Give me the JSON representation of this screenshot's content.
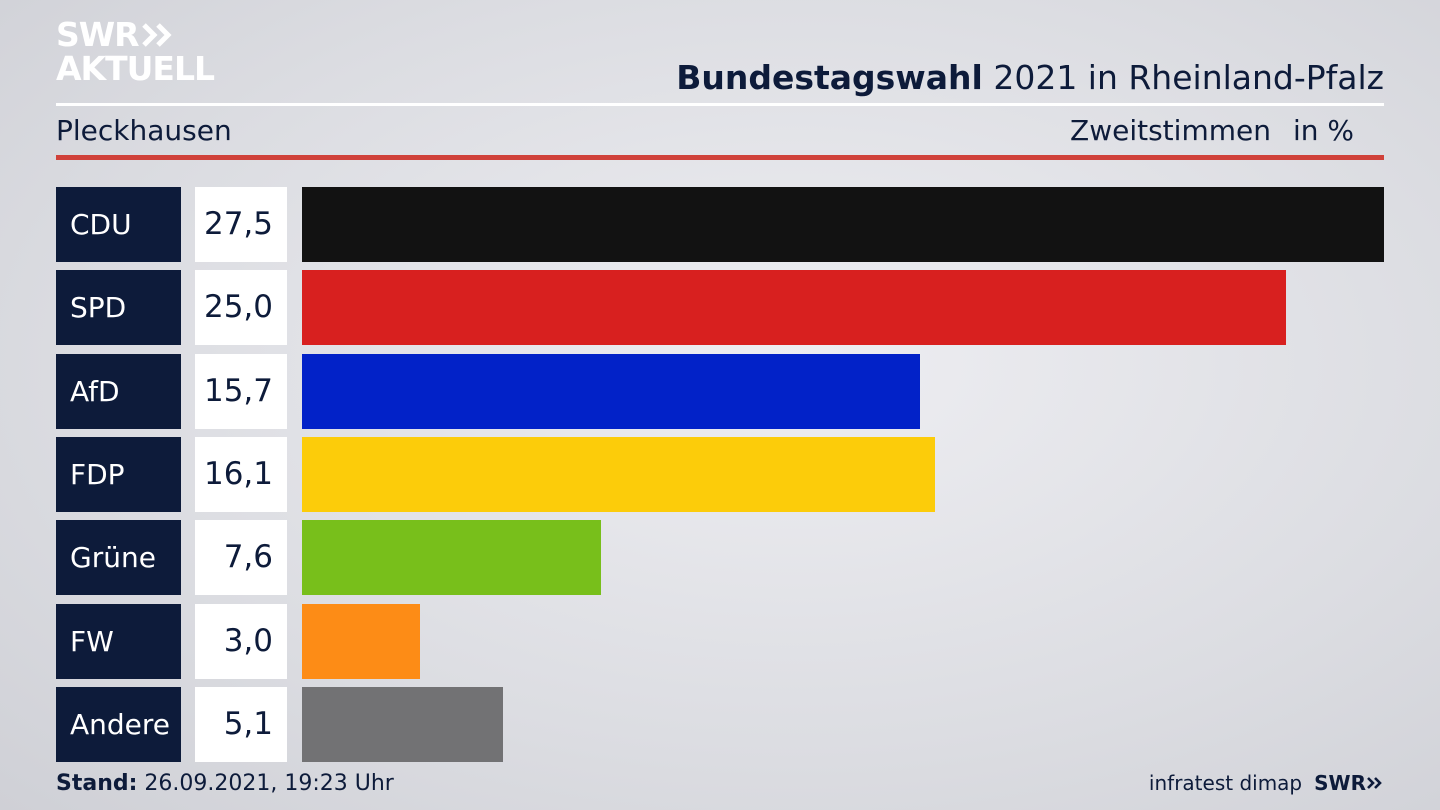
{
  "logo": {
    "line1": "SWR",
    "line2": "AKTUELL"
  },
  "header": {
    "title_bold": "Bundestagswahl",
    "title_rest": " 2021 in Rheinland-Pfalz",
    "place": "Pleckhausen",
    "measure": "Zweitstimmen",
    "unit": "in %"
  },
  "footer": {
    "stand_label": "Stand:",
    "stand_value": " 26.09.2021, 19:23 Uhr",
    "source": "infratest dimap",
    "brand": "SWR"
  },
  "chart_data": {
    "type": "bar",
    "orientation": "horizontal",
    "categories": [
      "CDU",
      "SPD",
      "AfD",
      "FDP",
      "Grüne",
      "FW",
      "Andere"
    ],
    "values": [
      27.5,
      25.0,
      15.7,
      16.1,
      7.6,
      3.0,
      5.1
    ],
    "value_labels": [
      "27,5",
      "25,0",
      "15,7",
      "16,1",
      "7,6",
      "3,0",
      "5,1"
    ],
    "colors": [
      "#121212",
      "#d8201f",
      "#0222c8",
      "#fccc0a",
      "#78bf1b",
      "#fd8c16",
      "#727274"
    ],
    "xlim": [
      0,
      27.5
    ]
  }
}
